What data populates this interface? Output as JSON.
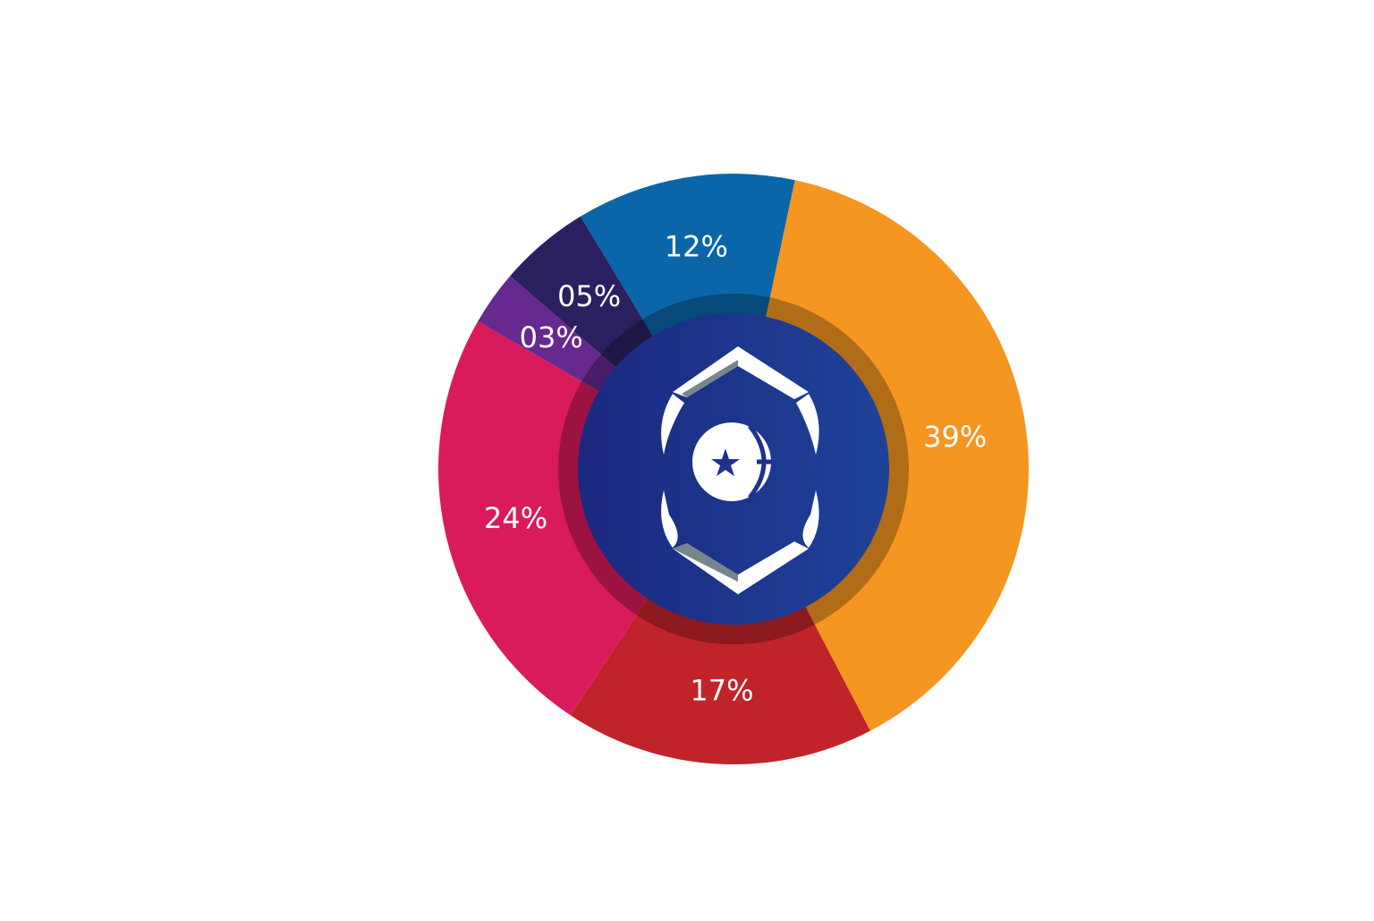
{
  "chart_data": {
    "type": "pie",
    "variant": "donut",
    "title": "",
    "categories": [
      "39%",
      "17%",
      "24%",
      "03%",
      "05%",
      "12%"
    ],
    "values": [
      39,
      17,
      24,
      3,
      5,
      12
    ],
    "labels": [
      "39%",
      "17%",
      "24%",
      "03%",
      "05%",
      "12%"
    ],
    "colors": [
      "#f59620",
      "#c1232a",
      "#d91b5b",
      "#66298f",
      "#2a2060",
      "#0a66a8"
    ],
    "legend": "none",
    "center_icon": "hexagon-emblem-with-star-logo"
  },
  "colors": {
    "center_disc": "#1f3290",
    "logo_white": "#ffffff",
    "logo_dark": "#1e3340"
  }
}
